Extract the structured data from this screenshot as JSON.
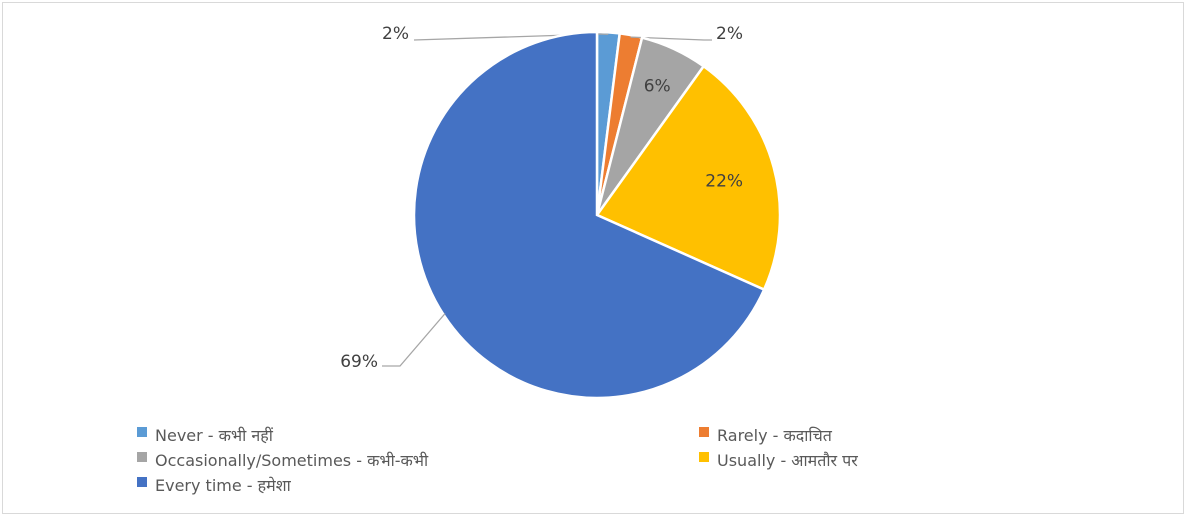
{
  "chart_data": {
    "type": "pie",
    "title": "",
    "categories": [
      "Never - कभी  नहीं",
      "Rarely - कदाचित",
      "Occasionally/Sometimes - कभी-कभी",
      "Usually - आमतौर  पर",
      "Every time - हमेशा"
    ],
    "values": [
      2,
      2,
      6,
      22,
      69
    ],
    "data_labels": [
      "2%",
      "2%",
      "6%",
      "22%",
      "69%"
    ],
    "colors": [
      "#5B9BD5",
      "#ED7D31",
      "#A5A5A5",
      "#FFC000",
      "#4472C4"
    ],
    "legend_position": "bottom"
  }
}
